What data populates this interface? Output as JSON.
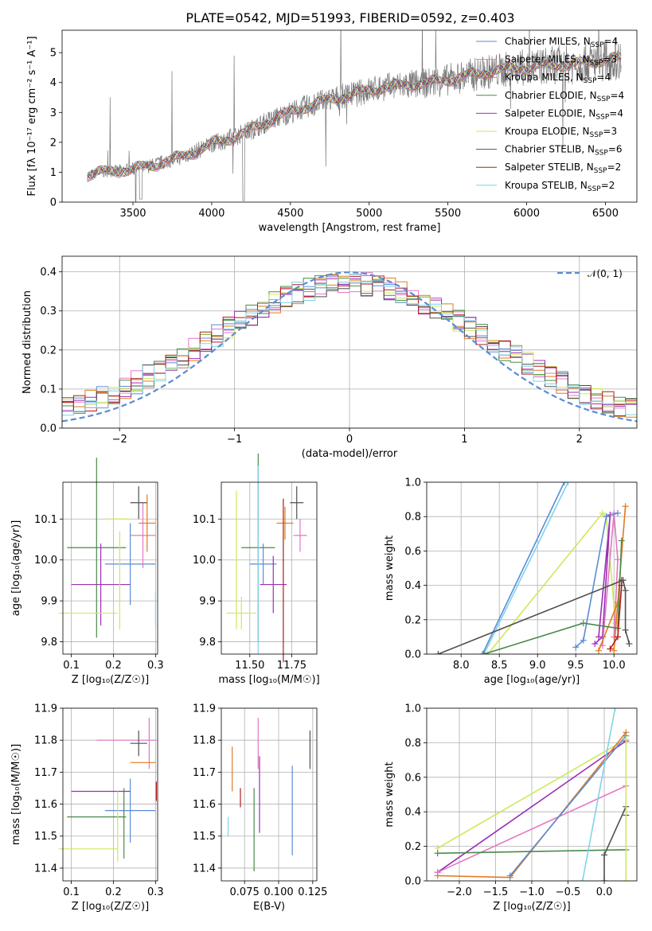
{
  "figure": {
    "title": "PLATE=0542, MJD=51993, FIBERID=0592, z=0.403"
  },
  "colors": {
    "Chabrier MILES": "#5b8bd6",
    "Salpeter MILES": "#e377c2",
    "Kroupa MILES": "#e07b20",
    "Chabrier ELODIE": "#4a8a4a",
    "Salpeter ELODIE": "#9b2fb5",
    "Kroupa ELODIE": "#cfe85a",
    "Chabrier STELIB": "#505050",
    "Salpeter STELIB": "#b01c1c",
    "Kroupa STELIB": "#7fd3e8",
    "normal": "#5b8bd6"
  },
  "chart_data": [
    {
      "id": "spectrum",
      "type": "line",
      "title": "PLATE=0542, MJD=51993, FIBERID=0592, z=0.403",
      "xlabel": "wavelength [Angstrom, rest frame]",
      "ylabel": "Flux [fλ 10⁻¹⁷ erg cm⁻² s⁻¹ A⁻¹]",
      "xlim": [
        3050,
        6700
      ],
      "ylim": [
        0,
        5.75
      ],
      "xticks": [
        "3500",
        "4000",
        "4500",
        "5000",
        "5500",
        "6000",
        "6500"
      ],
      "yticks": [
        "0",
        "1",
        "2",
        "3",
        "4",
        "5"
      ],
      "legend_position": "top-right",
      "grid": false,
      "data_envelope": {
        "x": [
          3210,
          3300,
          3400,
          3500,
          3600,
          3700,
          3800,
          3900,
          4000,
          4100,
          4200,
          4300,
          4400,
          4500,
          4600,
          4700,
          4800,
          4900,
          5000,
          5100,
          5200,
          5300,
          5400,
          5500,
          5600,
          5700,
          5800,
          5900,
          6000,
          6100,
          6200,
          6300,
          6400,
          6500,
          6600
        ],
        "y": [
          0.9,
          1.0,
          1.05,
          1.1,
          1.2,
          1.35,
          1.5,
          1.7,
          1.95,
          2.1,
          2.3,
          2.55,
          2.8,
          3.0,
          3.2,
          3.35,
          3.5,
          3.6,
          3.75,
          3.85,
          3.9,
          3.95,
          4.0,
          4.1,
          4.2,
          4.3,
          4.4,
          4.45,
          4.5,
          4.55,
          4.6,
          4.6,
          4.7,
          4.75,
          4.8
        ]
      },
      "series": [
        {
          "name": "Chabrier MILES, N_SSP=4"
        },
        {
          "name": "Salpeter MILES, N_SSP=3"
        },
        {
          "name": "Kroupa MILES, N_SSP=4"
        },
        {
          "name": "Chabrier ELODIE, N_SSP=4"
        },
        {
          "name": "Salpeter ELODIE, N_SSP=4"
        },
        {
          "name": "Kroupa ELODIE, N_SSP=3"
        },
        {
          "name": "Chabrier STELIB, N_SSP=6"
        },
        {
          "name": "Salpeter STELIB, N_SSP=2"
        },
        {
          "name": "Kroupa STELIB, N_SSP=2"
        }
      ]
    },
    {
      "id": "residuals",
      "type": "line",
      "xlabel": "(data-model)/error",
      "ylabel": "Normed distribution",
      "xlim": [
        -2.5,
        2.5
      ],
      "ylim": [
        0,
        0.44
      ],
      "xticks": [
        "−2",
        "−1",
        "0",
        "1",
        "2"
      ],
      "yticks": [
        "0.0",
        "0.1",
        "0.2",
        "0.3",
        "0.4"
      ],
      "grid": true,
      "legend": [
        "𝒩(0, 1)"
      ],
      "normal_curve": {
        "mean": 0,
        "sigma": 1
      },
      "histogram_bins": [
        -2.5,
        -2.4,
        -2.3,
        -2.2,
        -2.1,
        -2.0,
        -1.9,
        -1.8,
        -1.7,
        -1.6,
        -1.5,
        -1.4,
        -1.3,
        -1.2,
        -1.1,
        -1.0,
        -0.9,
        -0.8,
        -0.7,
        -0.6,
        -0.5,
        -0.4,
        -0.3,
        -0.2,
        -0.1,
        0.0,
        0.1,
        0.2,
        0.3,
        0.4,
        0.5,
        0.6,
        0.7,
        0.8,
        0.9,
        1.0,
        1.1,
        1.2,
        1.3,
        1.4,
        1.5,
        1.6,
        1.7,
        1.8,
        1.9,
        2.0,
        2.1,
        2.2,
        2.3,
        2.4,
        2.5
      ]
    },
    {
      "id": "age_vs_Z",
      "type": "scatter",
      "xlabel": "Z [log₁₀(Z/Z☉)]",
      "ylabel": "age  [log₁₀(age/yr)]",
      "xlim": [
        0.08,
        0.305
      ],
      "ylim": [
        9.77,
        10.19
      ],
      "xticks": [
        "0.1",
        "0.2",
        "0.3"
      ],
      "yticks": [
        "9.8",
        "9.9",
        "10.0",
        "10.1"
      ],
      "grid": true,
      "points": [
        {
          "series": "Chabrier MILES",
          "x": 0.24,
          "y": 9.99,
          "xerr": 0.06,
          "yerr": 0.1
        },
        {
          "series": "Salpeter MILES",
          "x": 0.27,
          "y": 10.06,
          "xerr": 0.03,
          "yerr": 0.08
        },
        {
          "series": "Kroupa MILES",
          "x": 0.28,
          "y": 10.09,
          "xerr": 0.02,
          "yerr": 0.07
        },
        {
          "series": "Chabrier ELODIE",
          "x": 0.16,
          "y": 10.03,
          "xerr": 0.07,
          "yerr": 0.22
        },
        {
          "series": "Salpeter ELODIE",
          "x": 0.17,
          "y": 9.94,
          "xerr": 0.07,
          "yerr": 0.1
        },
        {
          "series": "Kroupa ELODIE",
          "x": 0.21,
          "y": 10.1,
          "xerr": 0.03,
          "yerr": 0.0
        },
        {
          "series": "Kroupa ELODIE",
          "x": 0.14,
          "y": 9.87,
          "xerr": 0.07,
          "yerr": 0.0
        },
        {
          "series": "Chabrier STELIB",
          "x": 0.26,
          "y": 10.14,
          "xerr": 0.02,
          "yerr": 0.04
        },
        {
          "series": "Kroupa STELIB",
          "x": 0.3,
          "y": 9.88,
          "xerr": 0.0,
          "yerr": 0.04
        },
        {
          "series": "Kroupa ELODIE",
          "x": 0.215,
          "y": 9.95,
          "xerr": 0.0,
          "yerr": 0.12
        }
      ]
    },
    {
      "id": "age_vs_mass",
      "type": "scatter",
      "xlabel": "mass [log₁₀(M/M☉)]",
      "ylabel": "",
      "xlim": [
        11.33,
        11.9
      ],
      "ylim": [
        9.77,
        10.19
      ],
      "xticks": [
        "11.50",
        "11.75"
      ],
      "yticks": [
        "9.8",
        "9.9",
        "10.0",
        "10.1"
      ],
      "grid": true,
      "points": [
        {
          "series": "Chabrier MILES",
          "x": 11.58,
          "y": 9.99,
          "xerr": 0.08,
          "yerr": 0.05
        },
        {
          "series": "Salpeter MILES",
          "x": 11.8,
          "y": 10.06,
          "xerr": 0.04,
          "yerr": 0.04
        },
        {
          "series": "Kroupa MILES",
          "x": 11.71,
          "y": 10.09,
          "xerr": 0.05,
          "yerr": 0.04
        },
        {
          "series": "Chabrier ELODIE",
          "x": 11.55,
          "y": 10.03,
          "xerr": 0.1,
          "yerr": 0.23
        },
        {
          "series": "Salpeter ELODIE",
          "x": 11.64,
          "y": 9.94,
          "xerr": 0.08,
          "yerr": 0.07
        },
        {
          "series": "Kroupa ELODIE",
          "x": 11.45,
          "y": 9.87,
          "xerr": 0.09,
          "yerr": 0.04
        },
        {
          "series": "Kroupa ELODIE",
          "x": 11.42,
          "y": 10.0,
          "xerr": 0.0,
          "yerr": 0.17
        },
        {
          "series": "Chabrier STELIB",
          "x": 11.78,
          "y": 10.14,
          "xerr": 0.04,
          "yerr": 0.04
        },
        {
          "series": "Salpeter STELIB",
          "x": 11.7,
          "y": 9.95,
          "xerr": 0.0,
          "yerr": 0.2
        },
        {
          "series": "Kroupa STELIB",
          "x": 11.55,
          "y": 10.0,
          "xerr": 0.0,
          "yerr": 0.23
        }
      ]
    },
    {
      "id": "weight_vs_age",
      "type": "line",
      "xlabel": "age  [log₁₀(age/yr)]",
      "ylabel": "mass weight",
      "xlim": [
        7.55,
        10.3
      ],
      "ylim": [
        0,
        1.0
      ],
      "xticks": [
        "8.0",
        "8.5",
        "9.0",
        "9.5",
        "10.0"
      ],
      "yticks": [
        "0.0",
        "0.2",
        "0.4",
        "0.6",
        "0.8",
        "1.0"
      ],
      "grid": true,
      "series": [
        {
          "color_key": "Kroupa STELIB",
          "x": [
            8.3,
            9.4
          ],
          "y": [
            0.0,
            1.0
          ]
        },
        {
          "color_key": "Chabrier MILES",
          "x": [
            8.28,
            9.35
          ],
          "y": [
            0.0,
            1.0
          ]
        },
        {
          "color_key": "Kroupa ELODIE",
          "x": [
            8.35,
            9.85,
            9.9,
            10.02
          ],
          "y": [
            0.0,
            0.82,
            0.8,
            0.18
          ]
        },
        {
          "color_key": "Salpeter ELODIE",
          "x": [
            9.8,
            9.95,
            9.85,
            9.75
          ],
          "y": [
            0.1,
            0.81,
            0.1,
            0.06
          ]
        },
        {
          "color_key": "Salpeter MILES",
          "x": [
            9.85,
            10.0,
            10.05,
            10.0
          ],
          "y": [
            0.05,
            0.82,
            0.55,
            0.1
          ]
        },
        {
          "color_key": "Kroupa MILES",
          "x": [
            9.8,
            10.05,
            10.15,
            10.0
          ],
          "y": [
            0.02,
            0.3,
            0.86,
            0.02
          ]
        },
        {
          "color_key": "Chabrier MILES",
          "x": [
            9.5,
            9.6,
            9.9,
            10.05
          ],
          "y": [
            0.04,
            0.08,
            0.8,
            0.82
          ]
        },
        {
          "color_key": "Chabrier ELODIE",
          "x": [
            8.3,
            9.6,
            10.05,
            10.1
          ],
          "y": [
            0.0,
            0.18,
            0.15,
            0.66
          ]
        },
        {
          "color_key": "Salpeter STELIB",
          "x": [
            9.95,
            10.05,
            10.1,
            10.1
          ],
          "y": [
            0.03,
            0.1,
            0.4,
            0.43
          ]
        },
        {
          "color_key": "Chabrier STELIB",
          "x": [
            7.7,
            10.12,
            10.15,
            10.15,
            10.2
          ],
          "y": [
            0.0,
            0.43,
            0.37,
            0.14,
            0.06
          ]
        }
      ]
    },
    {
      "id": "mass_vs_Z",
      "type": "scatter",
      "xlabel": "Z [log₁₀(Z/Z☉)]",
      "ylabel": "mass [log₁₀(M/M☉)]",
      "xlim": [
        0.08,
        0.305
      ],
      "ylim": [
        11.36,
        11.9
      ],
      "xticks": [
        "0.1",
        "0.2",
        "0.3"
      ],
      "yticks": [
        "11.4",
        "11.5",
        "11.6",
        "11.7",
        "11.8",
        "11.9"
      ],
      "grid": true,
      "points": [
        {
          "series": "Chabrier MILES",
          "x": 0.24,
          "y": 11.58,
          "xerr": 0.06,
          "yerr": 0.1
        },
        {
          "series": "Salpeter MILES",
          "x": 0.23,
          "y": 11.8,
          "xerr": 0.07,
          "yerr": 0.0
        },
        {
          "series": "Salpeter MILES",
          "x": 0.285,
          "y": 11.79,
          "xerr": 0.0,
          "yerr": 0.08
        },
        {
          "series": "Kroupa MILES",
          "x": 0.27,
          "y": 11.73,
          "xerr": 0.03,
          "yerr": 0.0
        },
        {
          "series": "Chabrier ELODIE",
          "x": 0.16,
          "y": 11.56,
          "xerr": 0.07,
          "yerr": 0.0
        },
        {
          "series": "Chabrier ELODIE",
          "x": 0.225,
          "y": 11.54,
          "xerr": 0.0,
          "yerr": 0.11
        },
        {
          "series": "Salpeter ELODIE",
          "x": 0.17,
          "y": 11.64,
          "xerr": 0.07,
          "yerr": 0.0
        },
        {
          "series": "Kroupa ELODIE",
          "x": 0.14,
          "y": 11.46,
          "xerr": 0.07,
          "yerr": 0.0
        },
        {
          "series": "Kroupa ELODIE",
          "x": 0.21,
          "y": 11.53,
          "xerr": 0.0,
          "yerr": 0.11
        },
        {
          "series": "Chabrier STELIB",
          "x": 0.26,
          "y": 11.79,
          "xerr": 0.02,
          "yerr": 0.04
        },
        {
          "series": "Salpeter STELIB",
          "x": 0.302,
          "y": 11.64,
          "xerr": 0.0,
          "yerr": 0.03
        }
      ]
    },
    {
      "id": "mass_vs_EBV",
      "type": "scatter",
      "xlabel": "E(B-V)",
      "ylabel": "",
      "xlim": [
        0.058,
        0.128
      ],
      "ylim": [
        11.36,
        11.9
      ],
      "xticks": [
        "0.075",
        "0.100",
        "0.125"
      ],
      "yticks": [
        "11.4",
        "11.5",
        "11.6",
        "11.7",
        "11.8",
        "11.9"
      ],
      "grid": true,
      "points": [
        {
          "series": "Kroupa MILES",
          "x": 0.066,
          "y": 11.71,
          "yerr": 0.07
        },
        {
          "series": "Salpeter STELIB",
          "x": 0.072,
          "y": 11.62,
          "yerr": 0.03
        },
        {
          "series": "Chabrier ELODIE",
          "x": 0.082,
          "y": 11.52,
          "yerr": 0.13
        },
        {
          "series": "Salpeter MILES",
          "x": 0.085,
          "y": 11.79,
          "yerr": 0.08
        },
        {
          "series": "Salpeter ELODIE",
          "x": 0.086,
          "y": 11.63,
          "yerr": 0.12
        },
        {
          "series": "Kroupa STELIB",
          "x": 0.063,
          "y": 11.53,
          "yerr": 0.03
        },
        {
          "series": "Chabrier MILES",
          "x": 0.11,
          "y": 11.58,
          "yerr": 0.14
        },
        {
          "series": "Chabrier STELIB",
          "x": 0.123,
          "y": 11.77,
          "yerr": 0.06
        }
      ]
    },
    {
      "id": "weight_vs_Z",
      "type": "line",
      "xlabel": "Z [log₁₀(Z/Z☉)]",
      "ylabel": "mass weight",
      "xlim": [
        -2.45,
        0.45
      ],
      "ylim": [
        0,
        1.0
      ],
      "xticks": [
        "−2.0",
        "−1.5",
        "−1.0",
        "−0.5",
        "0.0"
      ],
      "yticks": [
        "0.0",
        "0.2",
        "0.4",
        "0.6",
        "0.8",
        "1.0"
      ],
      "grid": true,
      "series": [
        {
          "color_key": "Kroupa ELODIE",
          "x": [
            -2.3,
            0.3
          ],
          "y": [
            0.19,
            0.82
          ]
        },
        {
          "color_key": "Salpeter ELODIE",
          "x": [
            -2.3,
            0.3
          ],
          "y": [
            0.05,
            0.81
          ]
        },
        {
          "color_key": "Salpeter MILES",
          "x": [
            -2.3,
            0.3
          ],
          "y": [
            0.05,
            0.55
          ]
        },
        {
          "color_key": "Kroupa MILES",
          "x": [
            -2.3,
            -1.3,
            0.3
          ],
          "y": [
            0.03,
            0.02,
            0.86
          ]
        },
        {
          "color_key": "Chabrier MILES",
          "x": [
            -1.3,
            0.3
          ],
          "y": [
            0.03,
            0.84
          ]
        },
        {
          "color_key": "Chabrier ELODIE",
          "x": [
            -2.3,
            0.3
          ],
          "y": [
            0.16,
            0.18
          ]
        },
        {
          "color_key": "Chabrier STELIB",
          "x": [
            0.0,
            0.0,
            0.3,
            0.3
          ],
          "y": [
            0.0,
            0.15,
            0.43,
            0.38
          ]
        },
        {
          "color_key": "Kroupa STELIB",
          "x": [
            -0.3,
            0.15
          ],
          "y": [
            0.0,
            1.0
          ]
        },
        {
          "color_key": "Kroupa ELODIE",
          "x": [
            0.3,
            0.3
          ],
          "y": [
            0.0,
            0.82
          ]
        }
      ]
    }
  ]
}
